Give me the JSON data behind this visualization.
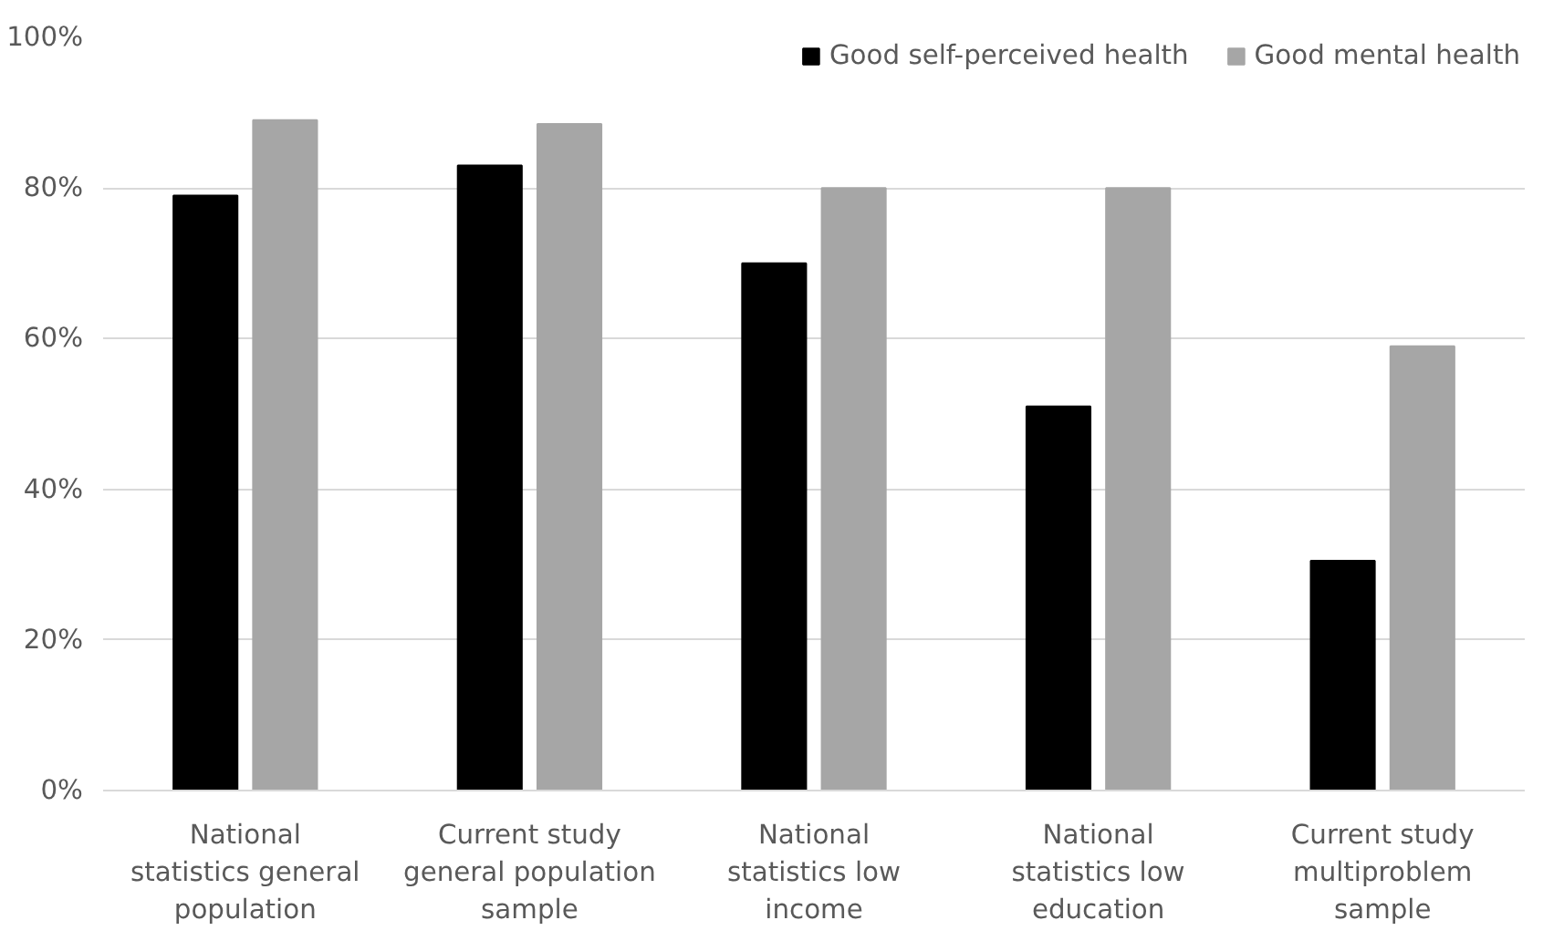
{
  "chart_data": {
    "type": "bar",
    "categories": [
      "National statistics general population",
      "Current study general population sample",
      "National statistics low income",
      "National statistics low education",
      "Current study multiproblem sample"
    ],
    "series": [
      {
        "name": "Good self-perceived health",
        "color": "#000000",
        "values": [
          79,
          83,
          70,
          51,
          30.5
        ]
      },
      {
        "name": "Good mental health",
        "color": "#a6a6a6",
        "values": [
          89,
          88.5,
          80,
          80,
          59
        ]
      }
    ],
    "ylim": [
      0,
      100
    ],
    "yticks": [
      {
        "value": 0,
        "label": "0%"
      },
      {
        "value": 20,
        "label": "20%"
      },
      {
        "value": 40,
        "label": "40%"
      },
      {
        "value": 60,
        "label": "60%"
      },
      {
        "value": 80,
        "label": "80%"
      },
      {
        "value": 100,
        "label": "100%"
      }
    ],
    "grid": "y",
    "legend": "top right"
  }
}
